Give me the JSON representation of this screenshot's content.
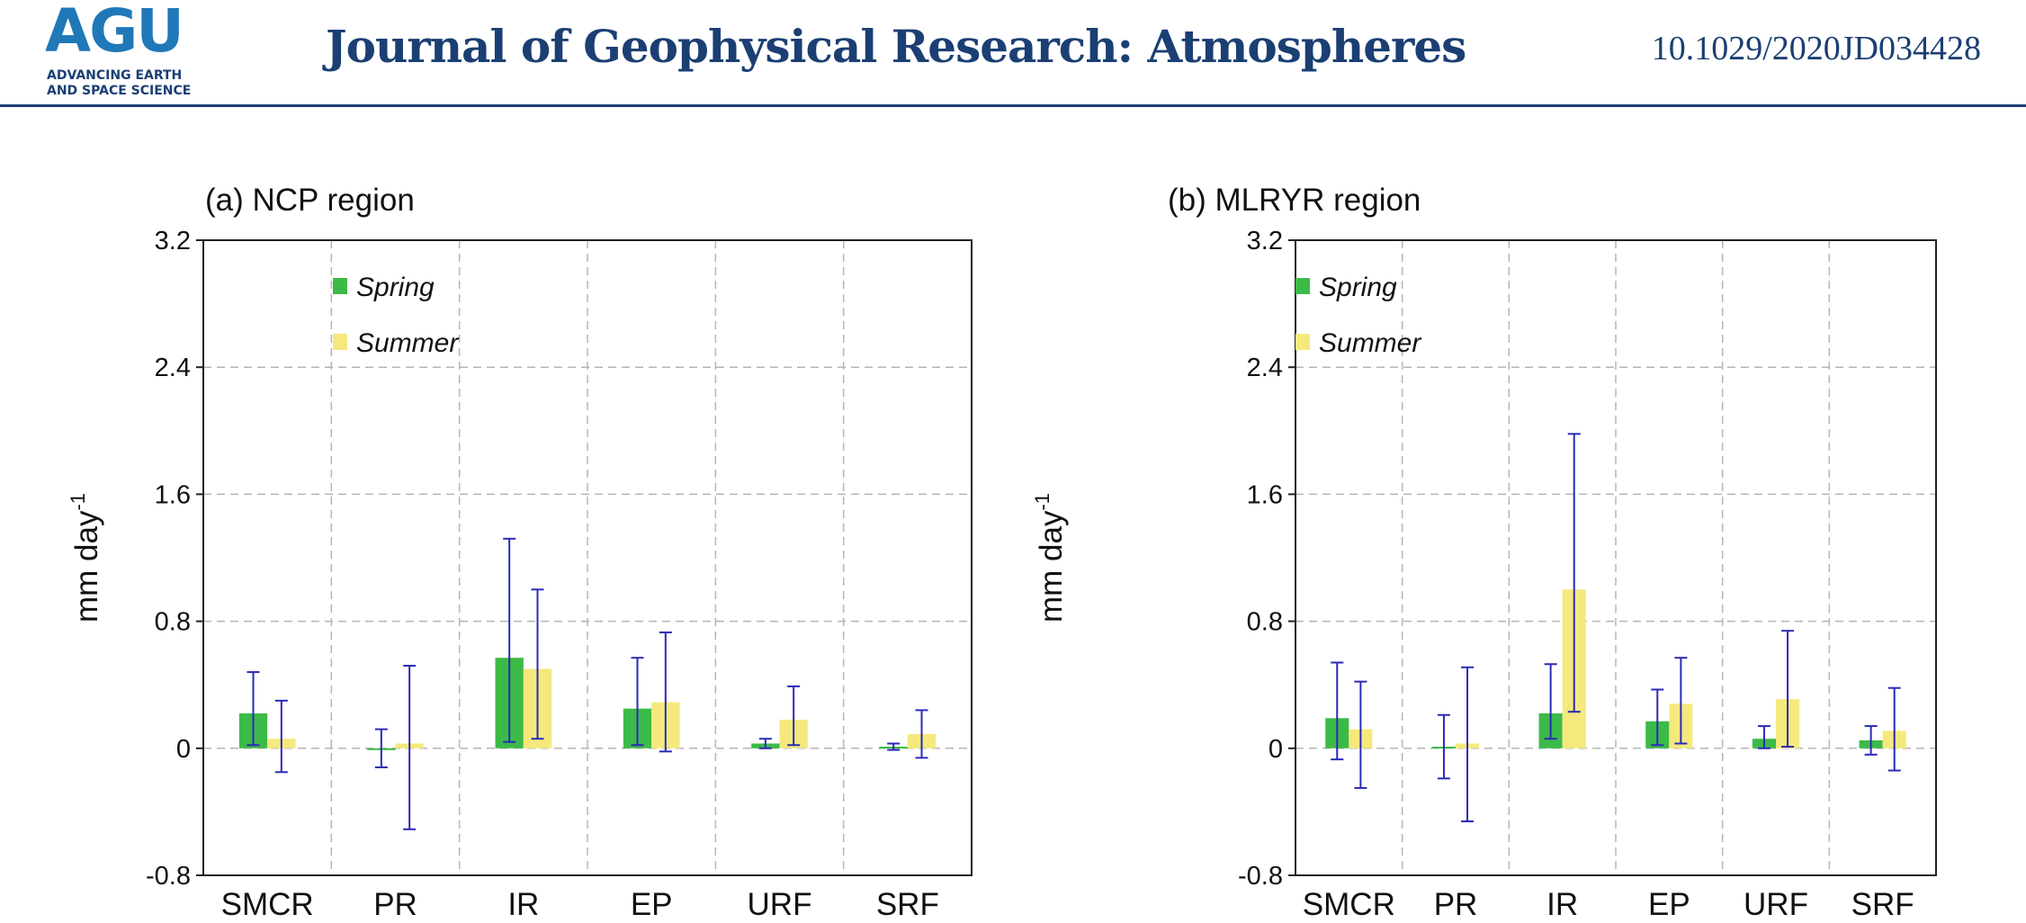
{
  "header": {
    "logo": "AGU",
    "logo_tagline_1": "ADVANCING EARTH",
    "logo_tagline_2": "AND SPACE SCIENCE",
    "journal": "Journal of Geophysical Research: Atmospheres",
    "doi": "10.1029/2020JD034428"
  },
  "colors": {
    "brand": "#1b3f73",
    "logo_blue": "#1f78b8",
    "spring": "#3cba48",
    "summer": "#f5e97d",
    "error_bar": "#2a2ab8"
  },
  "chart_data": [
    {
      "type": "bar",
      "title": "(a) NCP region",
      "ylabel": "mm day",
      "ylabel_superscript": "-1",
      "categories": [
        "SMCR",
        "PR",
        "IR",
        "EP",
        "URF",
        "SRF"
      ],
      "ylim": [
        -0.8,
        3.2
      ],
      "yticks": [
        -0.8,
        0,
        0.8,
        1.6,
        2.4,
        3.2
      ],
      "ytick_labels": [
        "-0.8",
        "0",
        "0.8",
        "1.6",
        "2.4",
        "3.2"
      ],
      "grid": true,
      "legend": "top-left",
      "series": [
        {
          "name": "Spring",
          "values": [
            0.22,
            0.0,
            0.57,
            0.25,
            0.03,
            0.01
          ],
          "err_low": [
            0.02,
            -0.12,
            0.04,
            0.02,
            0.0,
            -0.01
          ],
          "err_high": [
            0.48,
            0.12,
            1.32,
            0.57,
            0.06,
            0.03
          ]
        },
        {
          "name": "Summer",
          "values": [
            0.06,
            0.03,
            0.5,
            0.29,
            0.18,
            0.09
          ],
          "err_low": [
            -0.15,
            -0.51,
            0.06,
            -0.02,
            0.02,
            -0.06
          ],
          "err_high": [
            0.3,
            0.52,
            1.0,
            0.73,
            0.39,
            0.24
          ]
        }
      ]
    },
    {
      "type": "bar",
      "title": "(b) MLRYR region",
      "ylabel": "mm day",
      "ylabel_superscript": "-1",
      "categories": [
        "SMCR",
        "PR",
        "IR",
        "EP",
        "URF",
        "SRF"
      ],
      "ylim": [
        -0.8,
        3.2
      ],
      "yticks": [
        -0.8,
        0,
        0.8,
        1.6,
        2.4,
        3.2
      ],
      "ytick_labels": [
        "-0.8",
        "0",
        "0.8",
        "1.6",
        "2.4",
        "3.2"
      ],
      "grid": true,
      "legend": "top-left",
      "series": [
        {
          "name": "Spring",
          "values": [
            0.19,
            0.01,
            0.22,
            0.17,
            0.06,
            0.05
          ],
          "err_low": [
            -0.07,
            -0.19,
            0.06,
            0.02,
            0.0,
            -0.04
          ],
          "err_high": [
            0.54,
            0.21,
            0.53,
            0.37,
            0.14,
            0.14
          ]
        },
        {
          "name": "Summer",
          "values": [
            0.12,
            0.03,
            1.0,
            0.28,
            0.31,
            0.11
          ],
          "err_low": [
            -0.25,
            -0.46,
            0.23,
            0.03,
            0.01,
            -0.14
          ],
          "err_high": [
            0.42,
            0.51,
            1.98,
            0.57,
            0.74,
            0.38
          ]
        }
      ]
    }
  ]
}
